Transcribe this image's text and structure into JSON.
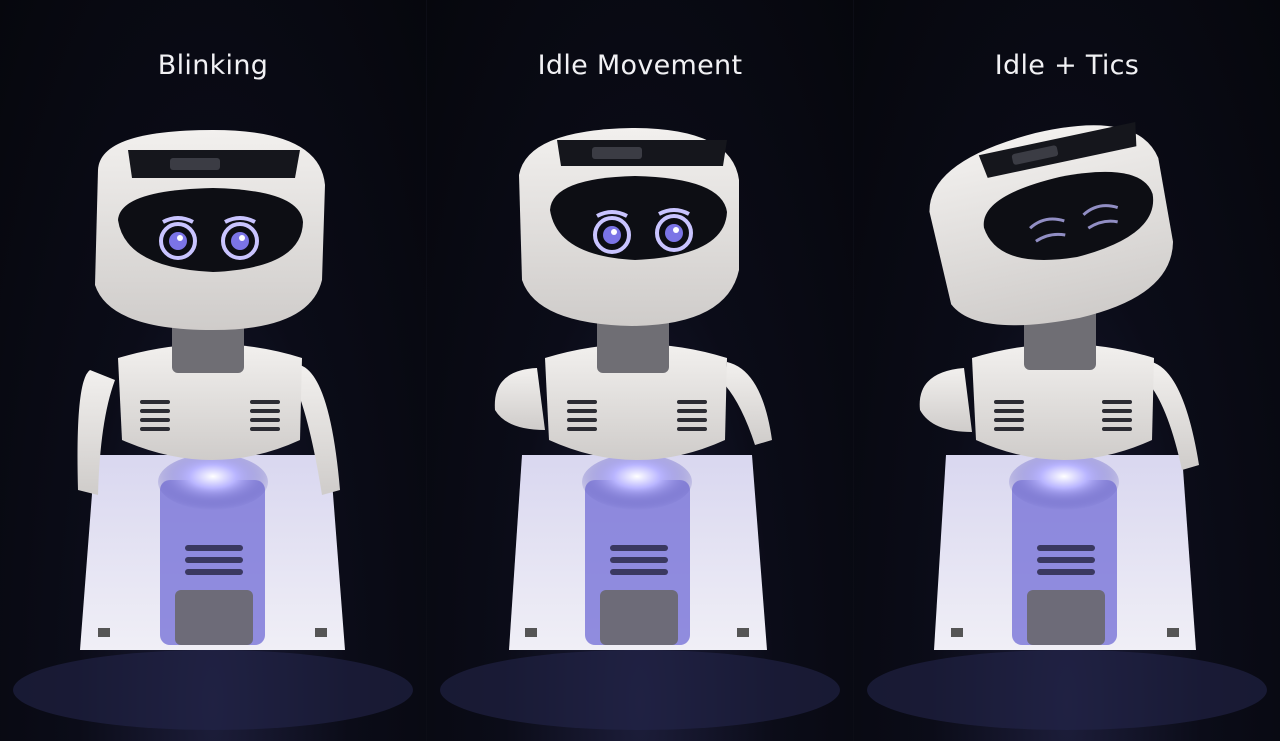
{
  "panels": [
    {
      "caption": "Blinking",
      "eye_state": "open"
    },
    {
      "caption": "Idle Movement",
      "eye_state": "open"
    },
    {
      "caption": "Idle + Tics",
      "eye_state": "closed"
    }
  ],
  "colors": {
    "background": "#07080f",
    "robot_shell": "#e8e6e3",
    "visor": "#0d0e14",
    "eye_glow": "#c9c4ff",
    "underglow": "#8f8aff",
    "caption": "#f1f1f4"
  }
}
